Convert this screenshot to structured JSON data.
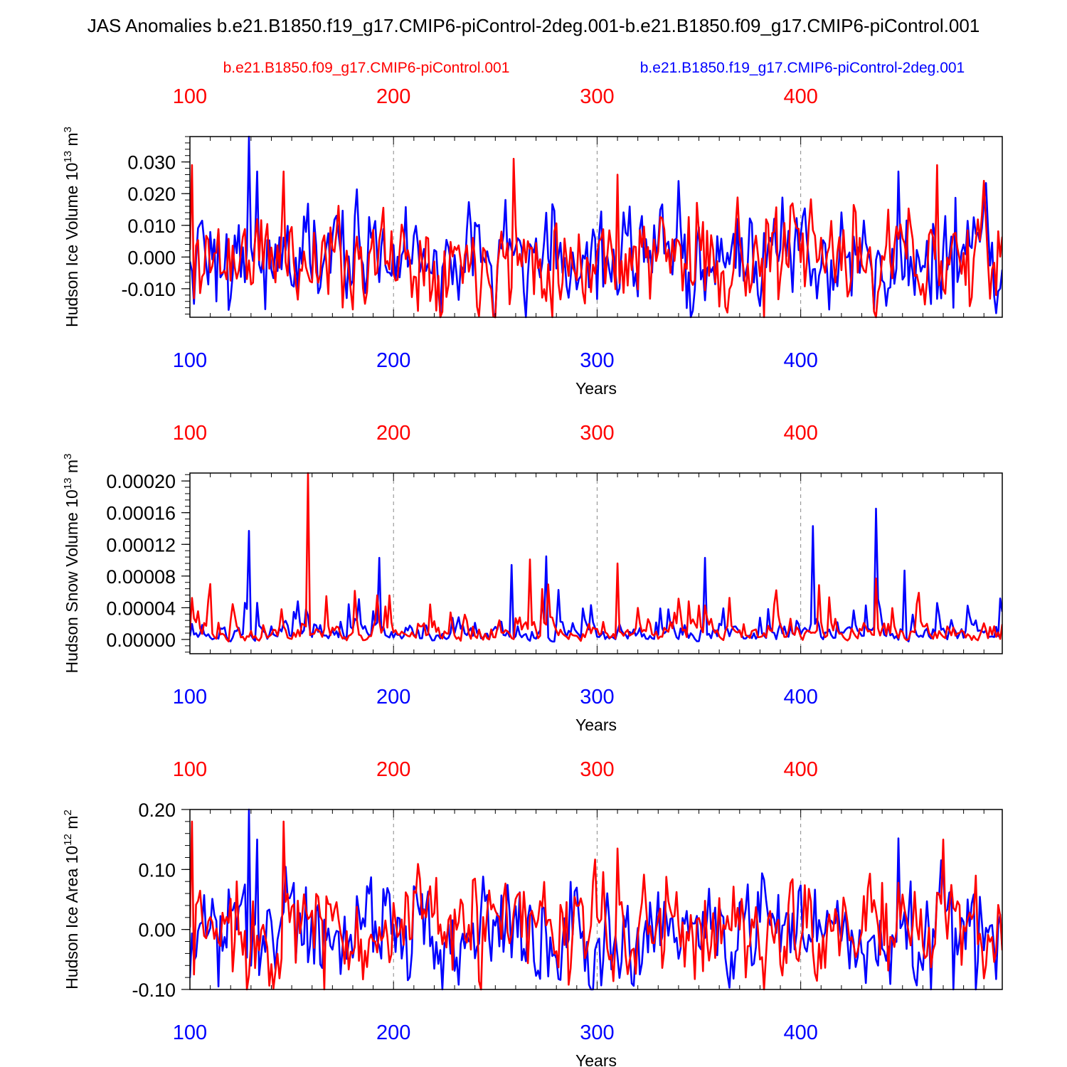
{
  "title": "JAS Anomalies b.e21.B1850.f19_g17.CMIP6-piControl-2deg.001-b.e21.B1850.f09_g17.CMIP6-piControl.001",
  "legend": {
    "red_case": "b.e21.B1850.f09_g17.CMIP6-piControl.001",
    "blue_case": "b.e21.B1850.f19_g17.CMIP6-piControl-2deg.001"
  },
  "colors": {
    "red": "#ff0000",
    "blue": "#0000ff",
    "axis": "#000000",
    "grid": "#888888"
  },
  "chart_data": [
    {
      "type": "line",
      "ylabel_main": "Hudson Ice Volume 10",
      "ylabel_exp": "13",
      "ylabel_unit": " m",
      "ylabel_unit_exp": "3",
      "xlabel": "Years",
      "xlim": [
        100,
        499
      ],
      "ylim": [
        -0.019,
        0.038
      ],
      "xticks": [
        "100",
        "200",
        "300",
        "400"
      ],
      "yticks": [
        {
          "v": 0.03,
          "label": "0.030"
        },
        {
          "v": 0.02,
          "label": "0.020"
        },
        {
          "v": 0.01,
          "label": "0.010"
        },
        {
          "v": 0.0,
          "label": "0.000"
        },
        {
          "v": -0.01,
          "label": "-0.010"
        }
      ],
      "peaks": [
        {
          "series": "red",
          "year": 101,
          "value": 0.029
        },
        {
          "series": "red",
          "year": 102,
          "value": -0.013
        },
        {
          "series": "blue",
          "year": 129,
          "value": 0.038
        },
        {
          "series": "blue",
          "year": 133,
          "value": 0.027
        },
        {
          "series": "red",
          "year": 146,
          "value": 0.027
        },
        {
          "series": "blue",
          "year": 113,
          "value": -0.014
        },
        {
          "series": "red",
          "year": 259,
          "value": 0.031
        },
        {
          "series": "red",
          "year": 310,
          "value": 0.026
        },
        {
          "series": "blue",
          "year": 340,
          "value": 0.024
        },
        {
          "series": "red",
          "year": 382,
          "value": -0.019
        },
        {
          "series": "blue",
          "year": 448,
          "value": 0.027
        },
        {
          "series": "red",
          "year": 467,
          "value": 0.029
        },
        {
          "series": "blue",
          "year": 475,
          "value": -0.016
        }
      ],
      "amp_red": 0.0075,
      "amp_blue": 0.0075,
      "offset": 0.0,
      "skew": false,
      "seed": 11
    },
    {
      "type": "line",
      "ylabel_main": "Hudson Snow Volume 10",
      "ylabel_exp": "13",
      "ylabel_unit": " m",
      "ylabel_unit_exp": "3",
      "xlabel": "Years",
      "xlim": [
        100,
        499
      ],
      "ylim": [
        -1.8e-05,
        0.00021
      ],
      "xticks": [
        "100",
        "200",
        "300",
        "400"
      ],
      "yticks": [
        {
          "v": 0.0002,
          "label": "0.00020"
        },
        {
          "v": 0.00016,
          "label": "0.00016"
        },
        {
          "v": 0.00012,
          "label": "0.00012"
        },
        {
          "v": 8e-05,
          "label": "0.00008"
        },
        {
          "v": 4e-05,
          "label": "0.00004"
        },
        {
          "v": 0.0,
          "label": "0.00000"
        }
      ],
      "peaks": [
        {
          "series": "red",
          "year": 158,
          "value": 0.00021
        },
        {
          "series": "blue",
          "year": 129,
          "value": 0.000137
        },
        {
          "series": "blue",
          "year": 193,
          "value": 0.000103
        },
        {
          "series": "red",
          "year": 110,
          "value": 7e-05
        },
        {
          "series": "blue",
          "year": 258,
          "value": 9.4e-05
        },
        {
          "series": "red",
          "year": 267,
          "value": 0.000101
        },
        {
          "series": "blue",
          "year": 275,
          "value": 0.000105
        },
        {
          "series": "red",
          "year": 310,
          "value": 9.6e-05
        },
        {
          "series": "blue",
          "year": 353,
          "value": 0.000103
        },
        {
          "series": "blue",
          "year": 406,
          "value": 0.000143
        },
        {
          "series": "blue",
          "year": 437,
          "value": 0.000165
        },
        {
          "series": "blue",
          "year": 451,
          "value": 8.7e-05
        },
        {
          "series": "red",
          "year": 437,
          "value": 7.7e-05
        }
      ],
      "amp_red": 1.2e-05,
      "amp_blue": 1.2e-05,
      "offset": 2e-06,
      "skew": true,
      "seed": 23
    },
    {
      "type": "line",
      "ylabel_main": "Hudson Ice Area 10",
      "ylabel_exp": "12",
      "ylabel_unit": " m",
      "ylabel_unit_exp": "2",
      "xlabel": "Years",
      "xlim": [
        100,
        499
      ],
      "ylim": [
        -0.1,
        0.2
      ],
      "xticks": [
        "100",
        "200",
        "300",
        "400"
      ],
      "yticks": [
        {
          "v": 0.2,
          "label": "0.20"
        },
        {
          "v": 0.1,
          "label": "0.10"
        },
        {
          "v": 0.0,
          "label": "0.00"
        },
        {
          "v": -0.1,
          "label": "-0.10"
        }
      ],
      "peaks": [
        {
          "series": "red",
          "year": 101,
          "value": 0.18
        },
        {
          "series": "red",
          "year": 102,
          "value": -0.075
        },
        {
          "series": "blue",
          "year": 129,
          "value": 0.2
        },
        {
          "series": "blue",
          "year": 133,
          "value": 0.15
        },
        {
          "series": "red",
          "year": 146,
          "value": 0.18
        },
        {
          "series": "blue",
          "year": 114,
          "value": -0.095
        },
        {
          "series": "red",
          "year": 310,
          "value": 0.135
        },
        {
          "series": "blue",
          "year": 448,
          "value": 0.152
        },
        {
          "series": "red",
          "year": 470,
          "value": 0.15
        },
        {
          "series": "red",
          "year": 382,
          "value": -0.1
        },
        {
          "series": "blue",
          "year": 475,
          "value": -0.1
        },
        {
          "series": "blue",
          "year": 486,
          "value": -0.1
        }
      ],
      "amp_red": 0.042,
      "amp_blue": 0.042,
      "offset": 0.0,
      "skew": false,
      "seed": 37
    }
  ]
}
